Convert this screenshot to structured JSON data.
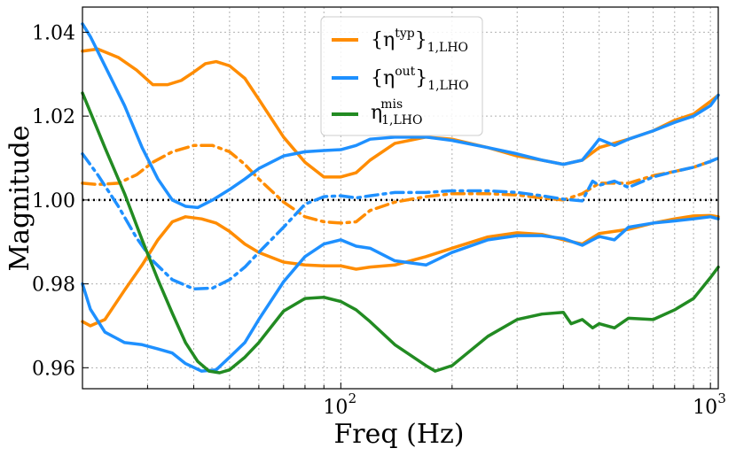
{
  "chart_data": {
    "type": "line",
    "title": "",
    "xlabel": "Freq (Hz)",
    "ylabel": "Magnitude",
    "xscale": "log",
    "xlim": [
      20,
      1050
    ],
    "ylim": [
      0.955,
      1.046
    ],
    "grid": true,
    "legend": {
      "placement": "top-center",
      "entries": [
        {
          "label": "{η^typ}_1,LHO",
          "color": "#ff8c00",
          "style": "solid"
        },
        {
          "label": "{η^out}_1,LHO",
          "color": "#1e90ff",
          "style": "solid"
        },
        {
          "label": "η^mis_1,LHO",
          "color": "#228b22",
          "style": "solid"
        }
      ]
    },
    "xticks": [
      {
        "value": 100,
        "label": "10",
        "exp": "2"
      },
      {
        "value": 1000,
        "label": "10",
        "exp": "3"
      }
    ],
    "yticks": [
      {
        "value": 0.96,
        "label": "0.96"
      },
      {
        "value": 0.98,
        "label": "0.98"
      },
      {
        "value": 1.0,
        "label": "1.00"
      },
      {
        "value": 1.02,
        "label": "1.02"
      },
      {
        "value": 1.04,
        "label": "1.04"
      }
    ],
    "reference_line": {
      "y": 1.0,
      "style": "dotted",
      "color": "#000000"
    },
    "series": [
      {
        "key": "typ_upper",
        "color": "#ff8c00",
        "dash": "solid",
        "x": [
          20,
          22,
          25,
          28,
          31,
          34,
          37,
          40,
          43,
          46,
          50,
          55,
          60,
          70,
          80,
          90,
          100,
          110,
          120,
          140,
          170,
          200,
          250,
          300,
          350,
          400,
          450,
          500,
          600,
          700,
          800,
          900,
          1000,
          1050
        ],
        "y": [
          1.0355,
          1.036,
          1.034,
          1.031,
          1.0275,
          1.0275,
          1.0285,
          1.0305,
          1.0325,
          1.033,
          1.032,
          1.029,
          1.024,
          1.015,
          1.009,
          1.0055,
          1.0055,
          1.0065,
          1.0095,
          1.0135,
          1.015,
          1.0145,
          1.0125,
          1.0105,
          1.0095,
          1.0085,
          1.0095,
          1.0125,
          1.0145,
          1.0165,
          1.019,
          1.0205,
          1.0235,
          1.025
        ]
      },
      {
        "key": "typ_lower",
        "color": "#ff8c00",
        "dash": "solid",
        "x": [
          20,
          21,
          23,
          26,
          29,
          32,
          35,
          38,
          42,
          46,
          50,
          55,
          60,
          70,
          80,
          90,
          100,
          110,
          120,
          140,
          170,
          200,
          250,
          300,
          350,
          400,
          450,
          500,
          600,
          700,
          800,
          900,
          1000,
          1050
        ],
        "y": [
          0.971,
          0.97,
          0.9715,
          0.9785,
          0.9845,
          0.9905,
          0.9948,
          0.996,
          0.9955,
          0.9945,
          0.9925,
          0.9895,
          0.9875,
          0.9852,
          0.9845,
          0.9843,
          0.9843,
          0.9835,
          0.984,
          0.9845,
          0.9865,
          0.9885,
          0.9912,
          0.9922,
          0.9918,
          0.9905,
          0.9895,
          0.992,
          0.993,
          0.9945,
          0.9955,
          0.9962,
          0.9963,
          0.996
        ]
      },
      {
        "key": "typ_mid",
        "color": "#ff8c00",
        "dash": "dashdot",
        "x": [
          20,
          22,
          25,
          28,
          31,
          35,
          40,
          45,
          50,
          55,
          60,
          70,
          80,
          90,
          100,
          110,
          120,
          140,
          170,
          200,
          250,
          300,
          350,
          400,
          450,
          500,
          600,
          700,
          800,
          900,
          1000,
          1050
        ],
        "y": [
          1.004,
          1.0037,
          1.004,
          1.006,
          1.009,
          1.0115,
          1.013,
          1.013,
          1.0115,
          1.0085,
          1.005,
          0.9995,
          0.996,
          0.9948,
          0.9945,
          0.9948,
          0.9975,
          0.9995,
          1.0008,
          1.0015,
          1.0015,
          1.0012,
          1.0005,
          1.0,
          1.0015,
          1.004,
          1.004,
          1.0058,
          1.0068,
          1.0078,
          1.0092,
          1.01
        ]
      },
      {
        "key": "out_upper",
        "color": "#1e90ff",
        "dash": "solid",
        "x": [
          20,
          21,
          23,
          26,
          29,
          32,
          35,
          38,
          41,
          45,
          50,
          55,
          60,
          70,
          80,
          90,
          100,
          110,
          120,
          140,
          170,
          200,
          250,
          300,
          350,
          400,
          450,
          480,
          500,
          550,
          600,
          700,
          800,
          900,
          1000,
          1050
        ],
        "y": [
          1.042,
          1.039,
          1.032,
          1.0225,
          1.0125,
          1.005,
          1.0,
          0.9985,
          0.9982,
          1.0,
          1.0025,
          1.005,
          1.0075,
          1.0105,
          1.0115,
          1.0118,
          1.012,
          1.013,
          1.0145,
          1.015,
          1.015,
          1.0142,
          1.0125,
          1.011,
          1.0095,
          1.0085,
          1.0095,
          1.0125,
          1.0145,
          1.013,
          1.0145,
          1.0165,
          1.0185,
          1.02,
          1.0225,
          1.025
        ]
      },
      {
        "key": "out_lower",
        "color": "#1e90ff",
        "dash": "solid",
        "x": [
          20,
          21,
          23,
          26,
          29,
          32,
          35,
          38,
          42,
          46,
          50,
          55,
          60,
          70,
          80,
          90,
          100,
          110,
          120,
          140,
          170,
          200,
          250,
          300,
          350,
          400,
          450,
          480,
          500,
          550,
          600,
          700,
          800,
          900,
          1000,
          1050
        ],
        "y": [
          0.98,
          0.974,
          0.9685,
          0.966,
          0.9655,
          0.9645,
          0.9635,
          0.961,
          0.9592,
          0.9595,
          0.9625,
          0.966,
          0.9715,
          0.9805,
          0.9865,
          0.9895,
          0.9905,
          0.989,
          0.9885,
          0.9855,
          0.9845,
          0.9875,
          0.9905,
          0.9915,
          0.9915,
          0.9908,
          0.9892,
          0.9905,
          0.9913,
          0.9905,
          0.9935,
          0.9945,
          0.995,
          0.9955,
          0.996,
          0.9955
        ]
      },
      {
        "key": "out_mid",
        "color": "#1e90ff",
        "dash": "dashdot",
        "x": [
          20,
          22,
          25,
          28,
          31,
          35,
          40,
          45,
          50,
          55,
          60,
          70,
          80,
          90,
          100,
          110,
          120,
          140,
          170,
          200,
          250,
          300,
          350,
          400,
          450,
          480,
          500,
          550,
          600,
          700,
          800,
          900,
          1000,
          1050
        ],
        "y": [
          1.011,
          1.006,
          0.9985,
          0.991,
          0.9855,
          0.981,
          0.9788,
          0.979,
          0.981,
          0.984,
          0.9875,
          0.9935,
          0.999,
          1.0008,
          1.001,
          1.0005,
          1.001,
          1.0018,
          1.0018,
          1.0022,
          1.0022,
          1.0018,
          1.001,
          1.0002,
          0.9998,
          1.0045,
          1.0035,
          1.0045,
          1.003,
          1.0055,
          1.0068,
          1.0078,
          1.0092,
          1.01
        ]
      },
      {
        "key": "mis",
        "color": "#228b22",
        "dash": "solid",
        "x": [
          20,
          21,
          23,
          26,
          29,
          32,
          35,
          38,
          41,
          44,
          47,
          50,
          55,
          60,
          70,
          80,
          90,
          100,
          110,
          120,
          140,
          170,
          180,
          200,
          250,
          300,
          350,
          400,
          420,
          450,
          480,
          500,
          550,
          600,
          700,
          800,
          900,
          1000,
          1050
        ],
        "y": [
          1.0255,
          1.021,
          1.0125,
          1.0015,
          0.9905,
          0.981,
          0.973,
          0.966,
          0.9615,
          0.9592,
          0.9588,
          0.9595,
          0.9625,
          0.966,
          0.9735,
          0.9765,
          0.9768,
          0.9758,
          0.9738,
          0.971,
          0.9655,
          0.9605,
          0.9592,
          0.9605,
          0.9675,
          0.9715,
          0.9728,
          0.9732,
          0.9705,
          0.9715,
          0.9695,
          0.9705,
          0.9695,
          0.9718,
          0.9715,
          0.9738,
          0.9765,
          0.9815,
          0.984
        ]
      }
    ]
  },
  "legend_text": {
    "typ_base": "{η",
    "typ_sup": "typ",
    "typ_close": "}",
    "typ_sub": "1,LHO",
    "out_base": "{η",
    "out_sup": "out",
    "out_close": "}",
    "out_sub": "1,LHO",
    "mis_base": "η",
    "mis_sup": "mis",
    "mis_sub": "1,LHO"
  }
}
